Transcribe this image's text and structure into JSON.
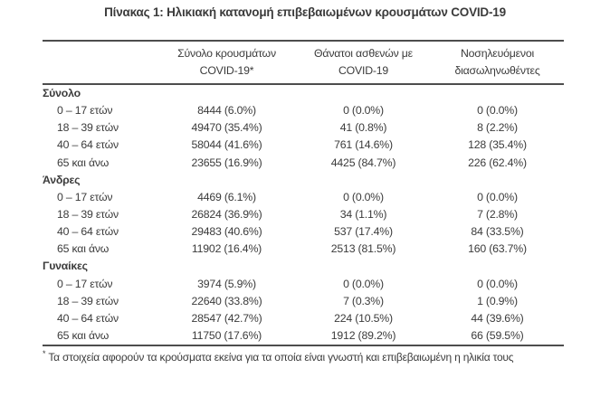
{
  "page": {
    "title": "Πίνακας 1: Ηλικιακή κατανομή επιβεβαιωμένων κρουσμάτων COVID-19"
  },
  "colors": {
    "text": "#3b3b3b",
    "rule": "#4d4d4d",
    "background": "#ffffff"
  },
  "table": {
    "header": {
      "col_cases_line1": "Σύνολο κρουσμάτων",
      "col_cases_line2": "COVID-19*",
      "col_deaths_line1": "Θάνατοι ασθενών με",
      "col_deaths_line2": "COVID-19",
      "col_intubated_line1": "Νοσηλευόμενοι",
      "col_intubated_line2": "διασωληνωθέντες"
    },
    "sections": [
      {
        "label": "Σύνολο",
        "rows": [
          {
            "age": "0 – 17 ετών",
            "cases": "8444 (6.0%)",
            "deaths": "0 (0.0%)",
            "intubated": "0 (0.0%)"
          },
          {
            "age": "18 – 39 ετών",
            "cases": "49470 (35.4%)",
            "deaths": "41 (0.8%)",
            "intubated": "8 (2.2%)"
          },
          {
            "age": "40 – 64 ετών",
            "cases": "58044 (41.6%)",
            "deaths": "761 (14.6%)",
            "intubated": "128 (35.4%)"
          },
          {
            "age": "65 και άνω",
            "cases": "23655 (16.9%)",
            "deaths": "4425 (84.7%)",
            "intubated": "226 (62.4%)"
          }
        ]
      },
      {
        "label": "Άνδρες",
        "rows": [
          {
            "age": "0 – 17 ετών",
            "cases": "4469 (6.1%)",
            "deaths": "0 (0.0%)",
            "intubated": "0 (0.0%)"
          },
          {
            "age": "18 – 39 ετών",
            "cases": "26824 (36.9%)",
            "deaths": "34 (1.1%)",
            "intubated": "7 (2.8%)"
          },
          {
            "age": "40 – 64 ετών",
            "cases": "29483 (40.6%)",
            "deaths": "537 (17.4%)",
            "intubated": "84 (33.5%)"
          },
          {
            "age": "65 και άνω",
            "cases": "11902 (16.4%)",
            "deaths": "2513 (81.5%)",
            "intubated": "160 (63.7%)"
          }
        ]
      },
      {
        "label": "Γυναίκες",
        "rows": [
          {
            "age": "0 – 17 ετών",
            "cases": "3974 (5.9%)",
            "deaths": "0 (0.0%)",
            "intubated": "0 (0.0%)"
          },
          {
            "age": "18 – 39 ετών",
            "cases": "22640 (33.8%)",
            "deaths": "7 (0.3%)",
            "intubated": "1 (0.9%)"
          },
          {
            "age": "40 – 64 ετών",
            "cases": "28547 (42.7%)",
            "deaths": "224 (10.5%)",
            "intubated": "44 (39.6%)"
          },
          {
            "age": "65 και άνω",
            "cases": "11750 (17.6%)",
            "deaths": "1912 (89.2%)",
            "intubated": "66 (59.5%)"
          }
        ]
      }
    ],
    "footnote": {
      "marker": "*",
      "text": "Τα στοιχεία αφορούν τα κρούσματα εκείνα για τα οποία είναι γνωστή και επιβεβαιωμένη η ηλικία τους"
    }
  }
}
